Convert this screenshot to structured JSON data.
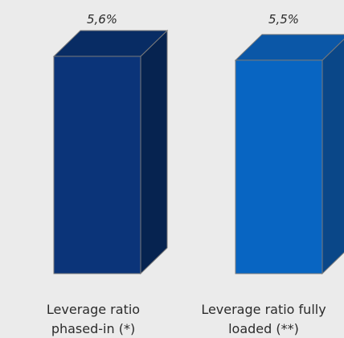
{
  "chart_data": {
    "type": "bar",
    "title": "",
    "xlabel": "",
    "ylabel": "",
    "categories": [
      "Leverage ratio phased-in (*)",
      "Leverage ratio fully loaded (**)"
    ],
    "category_lines": [
      [
        "Leverage ratio",
        "phased-in (*)"
      ],
      [
        "Leverage ratio fully",
        "loaded (**)"
      ]
    ],
    "values": [
      5.6,
      5.5
    ],
    "value_labels": [
      "5,6%",
      "5,5%"
    ],
    "ylim": [
      0,
      5.6
    ],
    "grid": false,
    "legend": "none",
    "style": "3d-column",
    "colors": {
      "bar_1": {
        "front": "#0b3479",
        "top": "#082c64",
        "side": "#062350"
      },
      "bar_2": {
        "front": "#0865c2",
        "top": "#0b57a7",
        "side": "#0a4788"
      },
      "edge": "#7a7a7a",
      "background": "#ebebeb",
      "text": "#2b2b2b"
    }
  }
}
